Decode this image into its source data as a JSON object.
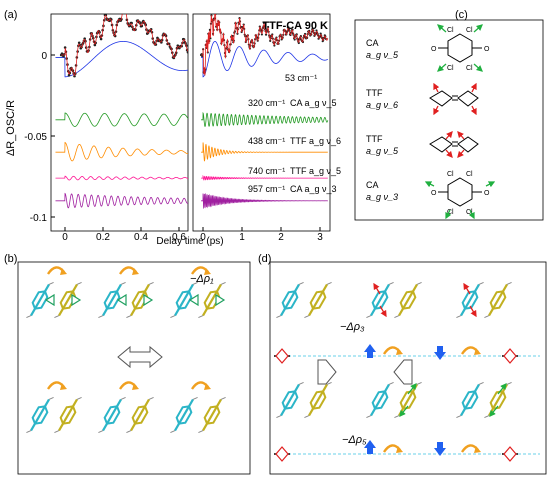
{
  "panel_a": {
    "label": "(a)",
    "sample_label": "TTF-CA  90 K",
    "ylabel": "ΔR_OSC/R",
    "xlabel": "Delay time (ps)",
    "y_ticks": [
      "0",
      "-0.05",
      "-0.1"
    ],
    "left_x_ticks": [
      "0",
      "0.2",
      "0.4",
      "0.6"
    ],
    "right_x_ticks": [
      "0",
      "1",
      "2",
      "3"
    ],
    "components": [
      {
        "freq": "53 cm⁻¹",
        "assign": "",
        "color": "#1f35e6"
      },
      {
        "freq": "320 cm⁻¹",
        "assign": "CA  a_g ν_5",
        "color": "#229922"
      },
      {
        "freq": "438 cm⁻¹",
        "assign": "TTF  a_g ν_6",
        "color": "#ff8c00"
      },
      {
        "freq": "740 cm⁻¹",
        "assign": "TTF  a_g ν_5",
        "color": "#ff1493"
      },
      {
        "freq": "957 cm⁻¹",
        "assign": "CA  a_g ν_3",
        "color": "#a020a0"
      }
    ]
  },
  "panel_b": {
    "label": "(b)",
    "delta_rho": "−Δρ₁"
  },
  "panel_c": {
    "label": "(c)",
    "modes": [
      {
        "molecule": "CA",
        "mode": "a_g ν_5"
      },
      {
        "molecule": "TTF",
        "mode": "a_g ν_6"
      },
      {
        "molecule": "TTF",
        "mode": "a_g ν_5"
      },
      {
        "molecule": "CA",
        "mode": "a_g ν_3"
      }
    ],
    "atom_O": "O",
    "atom_Cl": "Cl"
  },
  "panel_d": {
    "label": "(d)",
    "delta_rho_3": "−Δρ₃",
    "delta_rho_5": "−Δρ₅"
  }
}
